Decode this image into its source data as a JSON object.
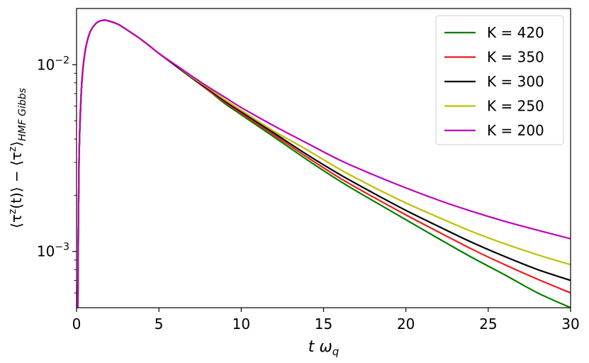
{
  "chart_data": {
    "type": "line",
    "xlabel": "t ω_q",
    "ylabel": "⟨τ^z(t)⟩ − ⟨τ^z⟩_HMF Gibbs",
    "xlim": [
      0,
      30
    ],
    "ylim": [
      0.0005,
      0.02
    ],
    "yscale": "log",
    "grid": false,
    "legend_position": "top-right",
    "x_ticks": [
      0,
      5,
      10,
      15,
      20,
      25,
      30
    ],
    "y_ticks": [
      {
        "value": 0.01,
        "mantissa": "10",
        "exponent": "−2"
      },
      {
        "value": 0.001,
        "mantissa": "10",
        "exponent": "−3"
      }
    ],
    "series": [
      {
        "name": "K = 420",
        "color": "#008000",
        "points": [
          [
            0.08,
            0.0005
          ],
          [
            0.15,
            0.003
          ],
          [
            0.3,
            0.0075
          ],
          [
            0.5,
            0.0115
          ],
          [
            0.8,
            0.0148
          ],
          [
            1.2,
            0.0167
          ],
          [
            1.6,
            0.0173
          ],
          [
            1.9,
            0.0172
          ],
          [
            2.5,
            0.0165
          ],
          [
            3,
            0.0155
          ],
          [
            4,
            0.0135
          ],
          [
            5,
            0.0115
          ],
          [
            6,
            0.0099
          ],
          [
            7,
            0.0085
          ],
          [
            8,
            0.0073
          ],
          [
            9,
            0.0062
          ],
          [
            10,
            0.0054
          ],
          [
            12,
            0.0041
          ],
          [
            14,
            0.0031
          ],
          [
            16,
            0.00238
          ],
          [
            18,
            0.00187
          ],
          [
            20,
            0.00148
          ],
          [
            22,
            0.00117
          ],
          [
            24,
            0.00093
          ],
          [
            26,
            0.00075
          ],
          [
            28,
            0.0006
          ],
          [
            30,
            0.0005
          ]
        ]
      },
      {
        "name": "K = 350",
        "color": "#ee1c1c",
        "points": [
          [
            0.08,
            0.0005
          ],
          [
            0.15,
            0.003
          ],
          [
            0.3,
            0.0075
          ],
          [
            0.5,
            0.0115
          ],
          [
            0.8,
            0.0148
          ],
          [
            1.2,
            0.0167
          ],
          [
            1.6,
            0.0173
          ],
          [
            1.9,
            0.0172
          ],
          [
            2.5,
            0.0165
          ],
          [
            3,
            0.0155
          ],
          [
            4,
            0.0135
          ],
          [
            5,
            0.0115
          ],
          [
            6,
            0.0099
          ],
          [
            7,
            0.0085
          ],
          [
            8,
            0.0073
          ],
          [
            9,
            0.0063
          ],
          [
            10,
            0.0055
          ],
          [
            12,
            0.0042
          ],
          [
            14,
            0.0032
          ],
          [
            16,
            0.00247
          ],
          [
            18,
            0.00196
          ],
          [
            20,
            0.00157
          ],
          [
            22,
            0.00127
          ],
          [
            24,
            0.00103
          ],
          [
            26,
            0.00085
          ],
          [
            28,
            0.00071
          ],
          [
            30,
            0.0006
          ]
        ]
      },
      {
        "name": "K = 300",
        "color": "#000000",
        "points": [
          [
            0.08,
            0.0005
          ],
          [
            0.15,
            0.003
          ],
          [
            0.3,
            0.0075
          ],
          [
            0.5,
            0.0115
          ],
          [
            0.8,
            0.0148
          ],
          [
            1.2,
            0.0167
          ],
          [
            1.6,
            0.0173
          ],
          [
            1.9,
            0.0172
          ],
          [
            2.5,
            0.0165
          ],
          [
            3,
            0.0155
          ],
          [
            4,
            0.0135
          ],
          [
            5,
            0.0115
          ],
          [
            6,
            0.0099
          ],
          [
            7,
            0.0085
          ],
          [
            8,
            0.0074
          ],
          [
            9,
            0.0064
          ],
          [
            10,
            0.0056
          ],
          [
            12,
            0.0043
          ],
          [
            14,
            0.0033
          ],
          [
            16,
            0.00258
          ],
          [
            18,
            0.00206
          ],
          [
            20,
            0.00166
          ],
          [
            22,
            0.00136
          ],
          [
            24,
            0.00112
          ],
          [
            26,
            0.00094
          ],
          [
            28,
            0.0008
          ],
          [
            30,
            0.0007
          ]
        ]
      },
      {
        "name": "K = 250",
        "color": "#bfbf00",
        "points": [
          [
            0.08,
            0.0005
          ],
          [
            0.15,
            0.003
          ],
          [
            0.3,
            0.0075
          ],
          [
            0.5,
            0.0115
          ],
          [
            0.8,
            0.0148
          ],
          [
            1.2,
            0.0167
          ],
          [
            1.6,
            0.0173
          ],
          [
            1.9,
            0.0172
          ],
          [
            2.5,
            0.0165
          ],
          [
            3,
            0.0155
          ],
          [
            4,
            0.0135
          ],
          [
            5,
            0.0115
          ],
          [
            6,
            0.01
          ],
          [
            7,
            0.0086
          ],
          [
            8,
            0.0075
          ],
          [
            9,
            0.0065
          ],
          [
            10,
            0.0057
          ],
          [
            12,
            0.0044
          ],
          [
            14,
            0.0035
          ],
          [
            16,
            0.00275
          ],
          [
            18,
            0.00222
          ],
          [
            20,
            0.00182
          ],
          [
            22,
            0.00152
          ],
          [
            24,
            0.00128
          ],
          [
            26,
            0.0011
          ],
          [
            28,
            0.00096
          ],
          [
            30,
            0.00085
          ]
        ]
      },
      {
        "name": "K = 200",
        "color": "#bf00bf",
        "points": [
          [
            0.08,
            0.0005
          ],
          [
            0.15,
            0.003
          ],
          [
            0.3,
            0.0075
          ],
          [
            0.5,
            0.0115
          ],
          [
            0.8,
            0.0148
          ],
          [
            1.2,
            0.0167
          ],
          [
            1.6,
            0.0173
          ],
          [
            1.9,
            0.0172
          ],
          [
            2.5,
            0.0165
          ],
          [
            3,
            0.0155
          ],
          [
            4,
            0.0135
          ],
          [
            5,
            0.0115
          ],
          [
            6,
            0.01
          ],
          [
            7,
            0.0087
          ],
          [
            8,
            0.0076
          ],
          [
            9,
            0.0067
          ],
          [
            10,
            0.0059
          ],
          [
            12,
            0.0047
          ],
          [
            14,
            0.0038
          ],
          [
            16,
            0.00308
          ],
          [
            18,
            0.00258
          ],
          [
            20,
            0.00219
          ],
          [
            22,
            0.00188
          ],
          [
            24,
            0.00164
          ],
          [
            26,
            0.00145
          ],
          [
            28,
            0.0013
          ],
          [
            30,
            0.00117
          ]
        ]
      }
    ]
  }
}
